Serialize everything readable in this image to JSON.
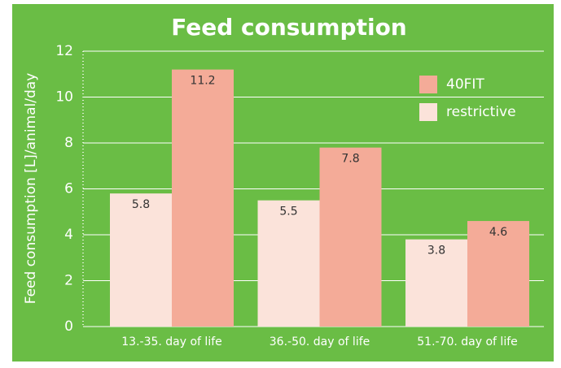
{
  "chart_data": {
    "type": "bar",
    "title": "Feed consumption",
    "y_label": "Feed consumption [L]/animal/day",
    "categories": [
      "13.-35. day of life",
      "36.-50. day of life",
      "51.-70. day of life"
    ],
    "series": [
      {
        "name": "restrictive",
        "color": "#fbe3da",
        "values": [
          5.8,
          5.5,
          3.8
        ]
      },
      {
        "name": "40FIT",
        "color": "#f4ab98",
        "values": [
          11.2,
          7.8,
          4.6
        ]
      }
    ],
    "ylim": [
      0,
      12
    ],
    "yticks": [
      0,
      2,
      4,
      6,
      8,
      10,
      12
    ],
    "grid": true,
    "legend": "upper right"
  }
}
